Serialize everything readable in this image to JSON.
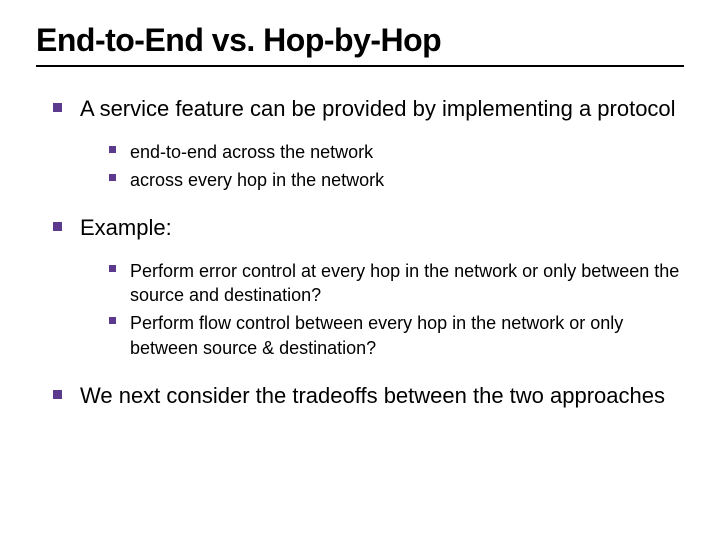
{
  "colors": {
    "bullet": "#5b3a8e",
    "text": "#000000",
    "rule": "#000000",
    "background": "#ffffff"
  },
  "title": "End-to-End vs. Hop-by-Hop",
  "items": [
    {
      "level": 1,
      "text": "A service feature can be provided by implementing a protocol",
      "children": [
        {
          "level": 2,
          "text": "end-to-end across the network"
        },
        {
          "level": 2,
          "text": "across every hop in the network"
        }
      ]
    },
    {
      "level": 1,
      "text": "Example:",
      "children": [
        {
          "level": 2,
          "text": "Perform error control at every hop in the network or only between the source and destination?"
        },
        {
          "level": 2,
          "text": "Perform flow control between every hop in the network or only between source & destination?"
        }
      ]
    },
    {
      "level": 1,
      "text": "We next consider the tradeoffs between the two approaches",
      "children": []
    }
  ]
}
